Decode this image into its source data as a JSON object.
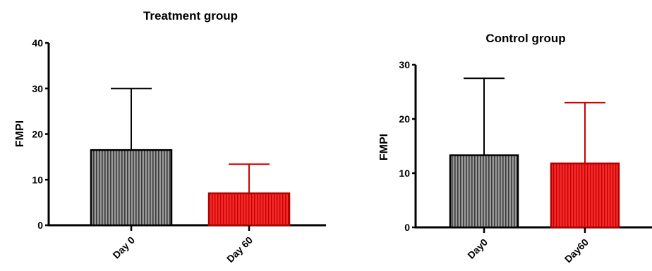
{
  "chart_data": [
    {
      "type": "bar",
      "title": "Treatment group",
      "ylabel": "FMPI",
      "xlabel": "",
      "ylim": [
        0,
        40
      ],
      "yticks": [
        0,
        10,
        20,
        30,
        40
      ],
      "categories": [
        "Day 0",
        "Day 60"
      ],
      "values": [
        16.5,
        7.0
      ],
      "error_upper": [
        30.0,
        13.4
      ],
      "colors": [
        "#8c8c8c",
        "#e00000"
      ],
      "error_colors": [
        "#000000",
        "#cc0000"
      ]
    },
    {
      "type": "bar",
      "title": "Control group",
      "ylabel": "FMPI",
      "xlabel": "",
      "ylim": [
        0,
        30
      ],
      "yticks": [
        0,
        10,
        20,
        30
      ],
      "categories": [
        "Day0",
        "Day60"
      ],
      "values": [
        13.3,
        11.8
      ],
      "error_upper": [
        27.5,
        23.0
      ],
      "colors": [
        "#8c8c8c",
        "#e00000"
      ],
      "error_colors": [
        "#000000",
        "#cc0000"
      ]
    }
  ]
}
